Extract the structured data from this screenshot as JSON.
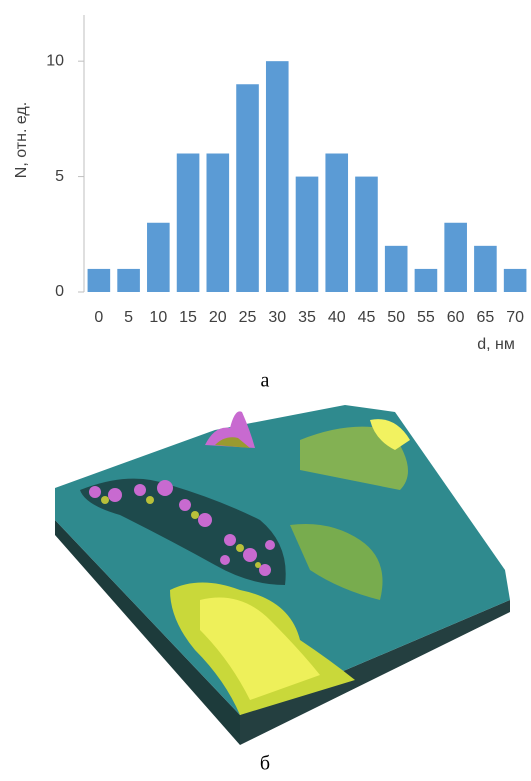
{
  "chart_data": {
    "type": "bar",
    "y_label": "N, отн. ед.",
    "x_label": "d, нм",
    "caption": "а",
    "categories": [
      "0",
      "5",
      "10",
      "15",
      "20",
      "25",
      "30",
      "35",
      "40",
      "45",
      "50",
      "55",
      "60",
      "65",
      "70"
    ],
    "values": [
      1,
      1,
      3,
      6,
      6,
      9,
      10,
      5,
      6,
      5,
      2,
      1,
      3,
      2,
      1
    ],
    "color": "#5b9bd5",
    "ylim": [
      0,
      12
    ],
    "yticks": [
      0,
      5,
      10
    ]
  },
  "image": {
    "caption": "б"
  }
}
